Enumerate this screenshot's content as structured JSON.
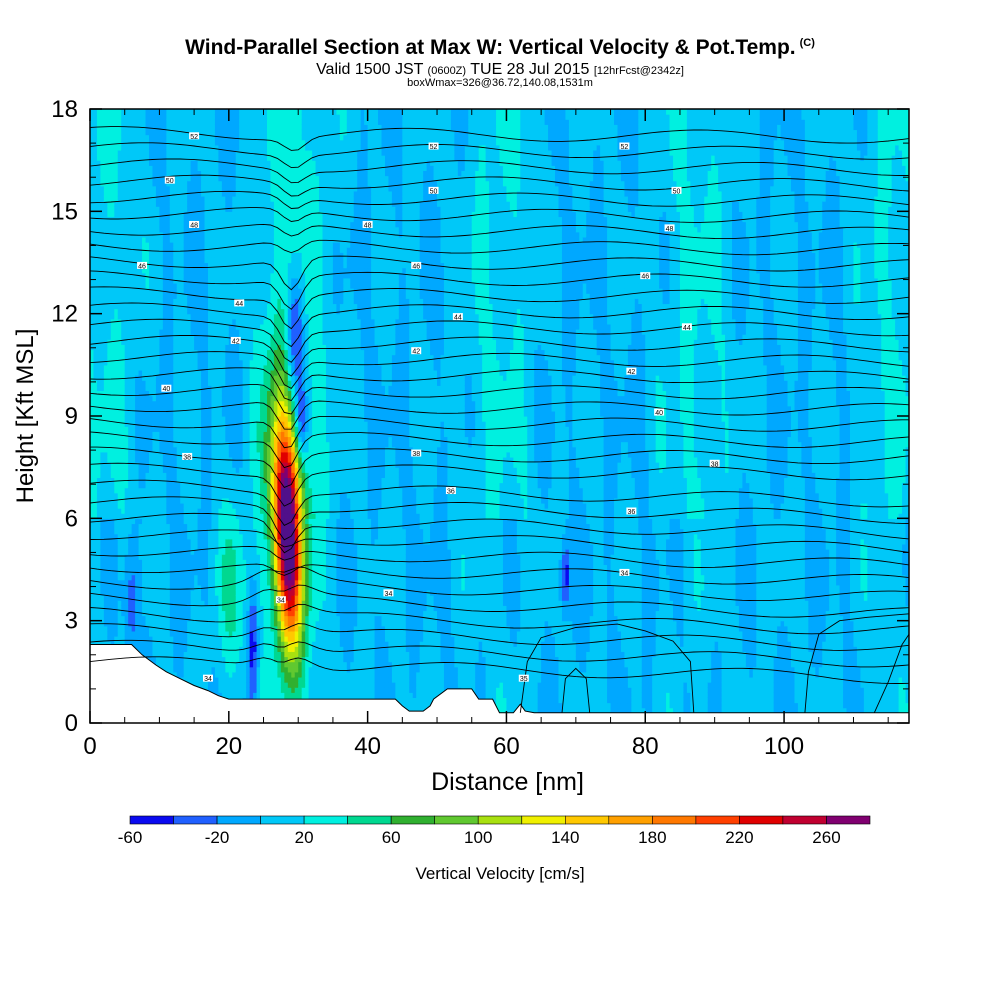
{
  "title": "Wind-Parallel Section at Max W: Vertical Velocity & Pot.Temp.",
  "copyright_mark": "(C)",
  "subtitle": {
    "valid": "Valid 1500 JST",
    "utc": "(0600Z)",
    "date": "TUE 28 Jul 2015",
    "forecast": "[12hrFcst@2342z]"
  },
  "subtitle2": "boxWmax=326@36.72,140.08,1531m",
  "chart_data": {
    "type": "heatmap",
    "xlabel": "Distance [nm]",
    "ylabel": "Height [Kft MSL]",
    "xlim": [
      0,
      118
    ],
    "ylim": [
      0,
      18
    ],
    "x_ticks": [
      "0",
      "20",
      "40",
      "60",
      "80",
      "100"
    ],
    "y_ticks": [
      "0",
      "3",
      "6",
      "9",
      "12",
      "15",
      "18"
    ],
    "colorbar": {
      "label": "Vertical Velocity [cm/s]",
      "tick_labels": [
        "-60",
        "-20",
        "20",
        "60",
        "100",
        "140",
        "180",
        "220",
        "260"
      ],
      "levels": [
        -60,
        -40,
        -20,
        0,
        20,
        40,
        60,
        80,
        100,
        120,
        140,
        160,
        180,
        200,
        220,
        240,
        260,
        280
      ],
      "colors": [
        "#0a0af0",
        "#2060ff",
        "#00a8ff",
        "#00c8f8",
        "#00f0e0",
        "#00d890",
        "#30b030",
        "#60c830",
        "#a8e010",
        "#f0f000",
        "#ffc800",
        "#ffa000",
        "#ff7800",
        "#ff4000",
        "#e00000",
        "#c00030",
        "#800070",
        "#50108a"
      ]
    },
    "max_updraft": {
      "label": "boxWmax",
      "value_cm_s": 326,
      "lat": 36.72,
      "lon": 140.08,
      "height_m": 1531,
      "distance_nm": 28.5
    },
    "theta_contour_labels": [
      {
        "text": "34",
        "x": 17,
        "y": 1.3
      },
      {
        "text": "34",
        "x": 27.5,
        "y": 3.6
      },
      {
        "text": "34",
        "x": 43,
        "y": 3.8
      },
      {
        "text": "34",
        "x": 77,
        "y": 4.4
      },
      {
        "text": "35",
        "x": 62.5,
        "y": 1.3
      },
      {
        "text": "36",
        "x": 52,
        "y": 6.8
      },
      {
        "text": "36",
        "x": 78,
        "y": 6.2
      },
      {
        "text": "38",
        "x": 47,
        "y": 7.9
      },
      {
        "text": "38",
        "x": 90,
        "y": 7.6
      },
      {
        "text": "38",
        "x": 14,
        "y": 7.8
      },
      {
        "text": "40",
        "x": 11,
        "y": 9.8
      },
      {
        "text": "40",
        "x": 82,
        "y": 9.1
      },
      {
        "text": "42",
        "x": 21,
        "y": 11.2
      },
      {
        "text": "42",
        "x": 47,
        "y": 10.9
      },
      {
        "text": "42",
        "x": 78,
        "y": 10.3
      },
      {
        "text": "44",
        "x": 21.5,
        "y": 12.3
      },
      {
        "text": "44",
        "x": 53,
        "y": 11.9
      },
      {
        "text": "44",
        "x": 86,
        "y": 11.6
      },
      {
        "text": "46",
        "x": 7.5,
        "y": 13.4
      },
      {
        "text": "46",
        "x": 47,
        "y": 13.4
      },
      {
        "text": "46",
        "x": 80,
        "y": 13.1
      },
      {
        "text": "48",
        "x": 15,
        "y": 14.6
      },
      {
        "text": "48",
        "x": 40,
        "y": 14.6
      },
      {
        "text": "48",
        "x": 83.5,
        "y": 14.5
      },
      {
        "text": "50",
        "x": 11.5,
        "y": 15.9
      },
      {
        "text": "50",
        "x": 49.5,
        "y": 15.6
      },
      {
        "text": "50",
        "x": 84.5,
        "y": 15.6
      },
      {
        "text": "52",
        "x": 15,
        "y": 17.2
      },
      {
        "text": "52",
        "x": 49.5,
        "y": 16.9
      },
      {
        "text": "52",
        "x": 77,
        "y": 16.9
      }
    ]
  }
}
